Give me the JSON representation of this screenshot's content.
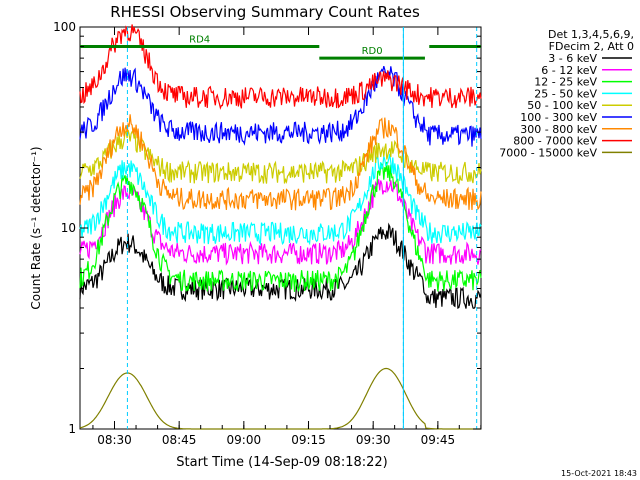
{
  "chart_data": {
    "type": "line",
    "title": "RHESSI Observing Summary Count Rates",
    "xlabel": "Start Time (14-Sep-09 08:18:22)",
    "ylabel": "Count Rate (s⁻¹ detector⁻¹)",
    "y_scale": "log",
    "ylim": [
      1,
      100
    ],
    "y_ticks": [
      {
        "value": 1,
        "label": "1"
      },
      {
        "value": 10,
        "label": "10"
      },
      {
        "value": 100,
        "label": "100"
      }
    ],
    "x_range_minutes": [
      8.3667,
      9.9167
    ],
    "x_ticks": [
      {
        "value": 8.5,
        "label": "08:30"
      },
      {
        "value": 8.75,
        "label": "08:45"
      },
      {
        "value": 9.0,
        "label": "09:00"
      },
      {
        "value": 9.25,
        "label": "09:15"
      },
      {
        "value": 9.5,
        "label": "09:30"
      },
      {
        "value": 9.75,
        "label": "09:45"
      }
    ],
    "legend": {
      "placement": "right",
      "header": [
        "Det 1,3,4,5,6,9,",
        "FDecim 2, Att 0"
      ]
    },
    "series": [
      {
        "name": "3 - 6 keV",
        "color": "#000000",
        "base": 5,
        "peak1": 8.5,
        "peak2": 9.5,
        "dropAfter": 9.7,
        "dropTo": 4.5
      },
      {
        "name": "6 - 12 keV",
        "color": "#ff00ff",
        "base": 7.5,
        "peak1": 15,
        "peak2": 17,
        "dropAfter": 9.7,
        "dropTo": 7.5
      },
      {
        "name": "12 - 25 keV",
        "color": "#00ff00",
        "base": 5.5,
        "peak1": 17,
        "peak2": 19,
        "dropAfter": 9.7,
        "dropTo": 5.5
      },
      {
        "name": "25 - 50 keV",
        "color": "#00ffff",
        "base": 9.5,
        "peak1": 20,
        "peak2": 22,
        "dropAfter": 9.7,
        "dropTo": 9.5
      },
      {
        "name": "50 - 100 keV",
        "color": "#cccc00",
        "base": 19,
        "peak1": 28,
        "peak2": 25,
        "dropAfter": 9.7,
        "dropTo": 19
      },
      {
        "name": "100 - 300 keV",
        "color": "#0000ff",
        "base": 30,
        "peak1": 58,
        "peak2": 58,
        "dropAfter": 9.7,
        "dropTo": 29
      },
      {
        "name": "300 - 800 keV",
        "color": "#ff8800",
        "base": 14,
        "peak1": 33,
        "peak2": 32,
        "dropAfter": 9.7,
        "dropTo": 14
      },
      {
        "name": "800 - 7000 keV",
        "color": "#ff0000",
        "base": 45,
        "peak1": 97,
        "peak2": 55,
        "dropAfter": 9.7,
        "dropTo": 45
      },
      {
        "name": "7000 - 15000 keV",
        "color": "#808000",
        "base": 1,
        "peak1": 1.9,
        "peak2": 2.0,
        "dropAfter": 9.7,
        "dropTo": 1
      }
    ],
    "flags": [
      {
        "label": "RD4",
        "color": "#008000",
        "x_start": 8.3667,
        "x_end": 9.2917,
        "y": 80
      },
      {
        "label": "RD0",
        "color": "#008000",
        "x_start": 9.2917,
        "x_end": 9.7,
        "y": 70
      },
      {
        "label": "",
        "color": "#008000",
        "x_start": 9.7167,
        "x_end": 9.9167,
        "y": 80
      }
    ],
    "saa_markers": {
      "color": "#00ccff",
      "solid_lines": [
        9.6167
      ],
      "dashed_lines": [
        8.55,
        9.6167,
        9.9
      ]
    },
    "timestamp": "15-Oct-2021 18:43"
  }
}
